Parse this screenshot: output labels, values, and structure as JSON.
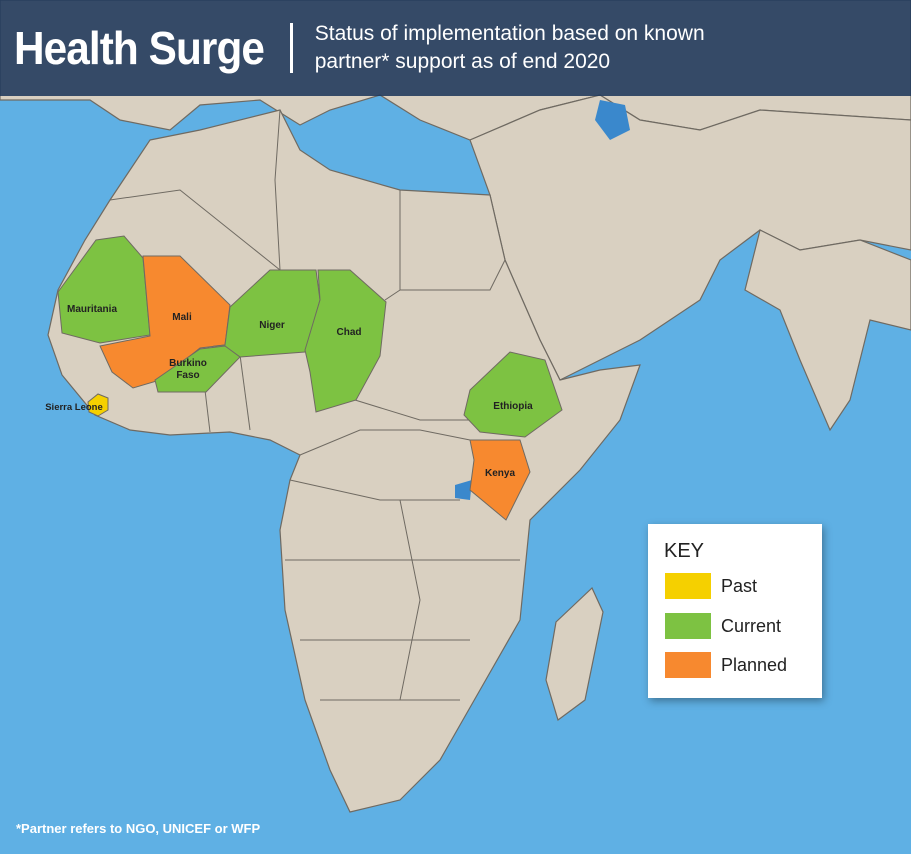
{
  "header": {
    "title": "Health Surge",
    "subtitle_line1": "Status of implementation based on known",
    "subtitle_line2": "partner* support as of end 2020"
  },
  "countries": {
    "mauritania": {
      "label": "Mauritania",
      "status": "Current"
    },
    "mali": {
      "label": "Mali",
      "status": "Planned"
    },
    "niger": {
      "label": "Niger",
      "status": "Current"
    },
    "chad": {
      "label": "Chad",
      "status": "Current"
    },
    "burkina": {
      "label_line1": "Burkino",
      "label_line2": "Faso",
      "status": "Current"
    },
    "sierra_leone": {
      "label": "Sierra Leone",
      "status": "Past"
    },
    "ethiopia": {
      "label": "Ethiopia",
      "status": "Current"
    },
    "kenya": {
      "label": "Kenya",
      "status": "Planned"
    }
  },
  "key": {
    "title": "KEY",
    "items": [
      {
        "label": "Past",
        "color": "#f5d000"
      },
      {
        "label": "Current",
        "color": "#7dc242"
      },
      {
        "label": "Planned",
        "color": "#f7892f"
      }
    ]
  },
  "colors": {
    "past": "#f5d000",
    "current": "#7dc242",
    "planned": "#f7892f",
    "sea": "#5fb0e4",
    "land": "#d9d0c1"
  },
  "footnote": "*Partner refers to NGO, UNICEF or WFP"
}
